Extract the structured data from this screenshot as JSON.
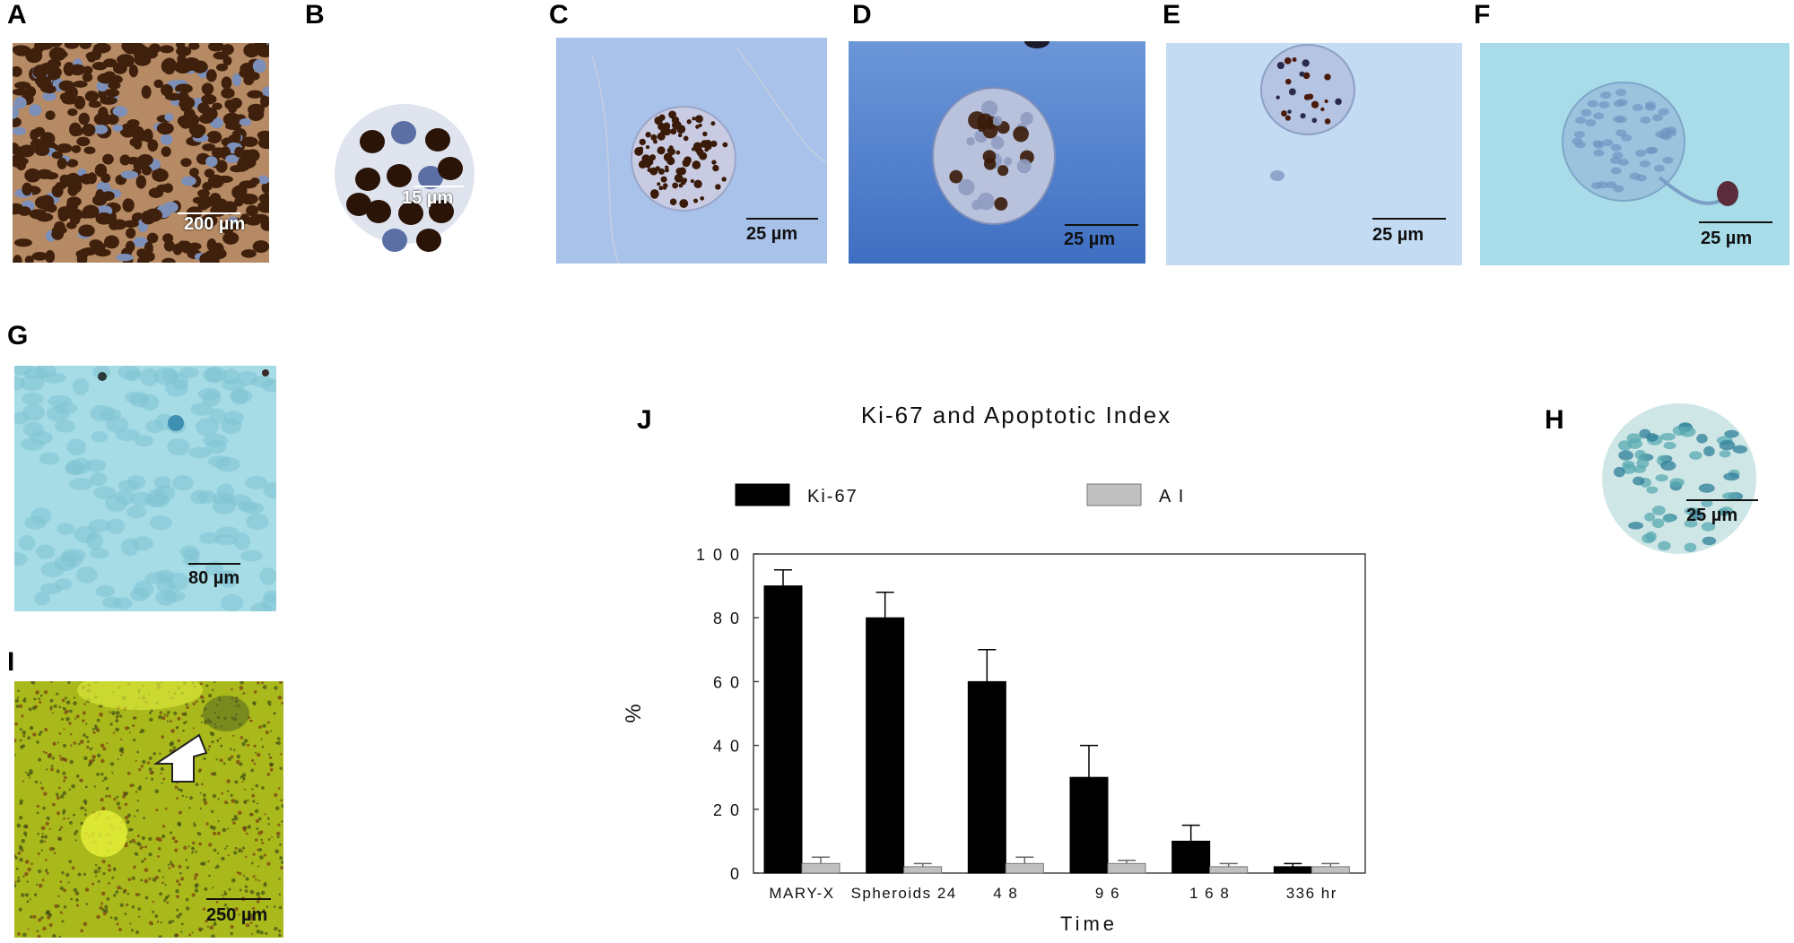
{
  "panels": {
    "A": {
      "letter": "A",
      "scale": "200 µm"
    },
    "B": {
      "letter": "B",
      "scale": "15 µm"
    },
    "C": {
      "letter": "C",
      "scale": "25 µm"
    },
    "D": {
      "letter": "D",
      "scale": "25 µm"
    },
    "E": {
      "letter": "E",
      "scale": "25 µm"
    },
    "F": {
      "letter": "F",
      "scale": "25 µm"
    },
    "G": {
      "letter": "G",
      "scale": "80 µm"
    },
    "H": {
      "letter": "H",
      "scale": "25 µm"
    },
    "I": {
      "letter": "I",
      "scale": "250 µm"
    },
    "J": {
      "letter": "J"
    }
  },
  "colors": {
    "brown_stain": "#5a2e12",
    "hema_blue": "#7d93c8",
    "light_blue_bg": "#a9c6ee",
    "dark_blue_bg": "#4f7fcc",
    "cyan_bg": "#a8dbe6",
    "yellow_green": "#b4c618",
    "ki67_bar": "#000000",
    "ai_bar": "#c0c0c0"
  },
  "chart_data": {
    "type": "bar",
    "title": "Ki-67 and Apoptotic Index",
    "xlabel": "Time",
    "ylabel": "%",
    "ylim": [
      0,
      100
    ],
    "yticks": [
      0,
      20,
      40,
      60,
      80,
      100
    ],
    "categories": [
      "MARY-X",
      "Spheroids",
      "48",
      "96",
      "168",
      "336"
    ],
    "tick_labels": [
      "MARY-X",
      "Spheroids   24",
      "4 8",
      "9 6",
      "1 6 8",
      "336   hr"
    ],
    "series": [
      {
        "name": "Ki-67",
        "color": "#000000",
        "values": [
          90,
          80,
          60,
          30,
          10,
          2
        ],
        "errors": [
          5,
          8,
          10,
          10,
          5,
          1
        ]
      },
      {
        "name": "A I",
        "color": "#c0c0c0",
        "values": [
          3,
          2,
          3,
          3,
          2,
          2
        ],
        "errors": [
          2,
          1,
          2,
          1,
          1,
          1
        ]
      }
    ],
    "legend_position": "top"
  }
}
